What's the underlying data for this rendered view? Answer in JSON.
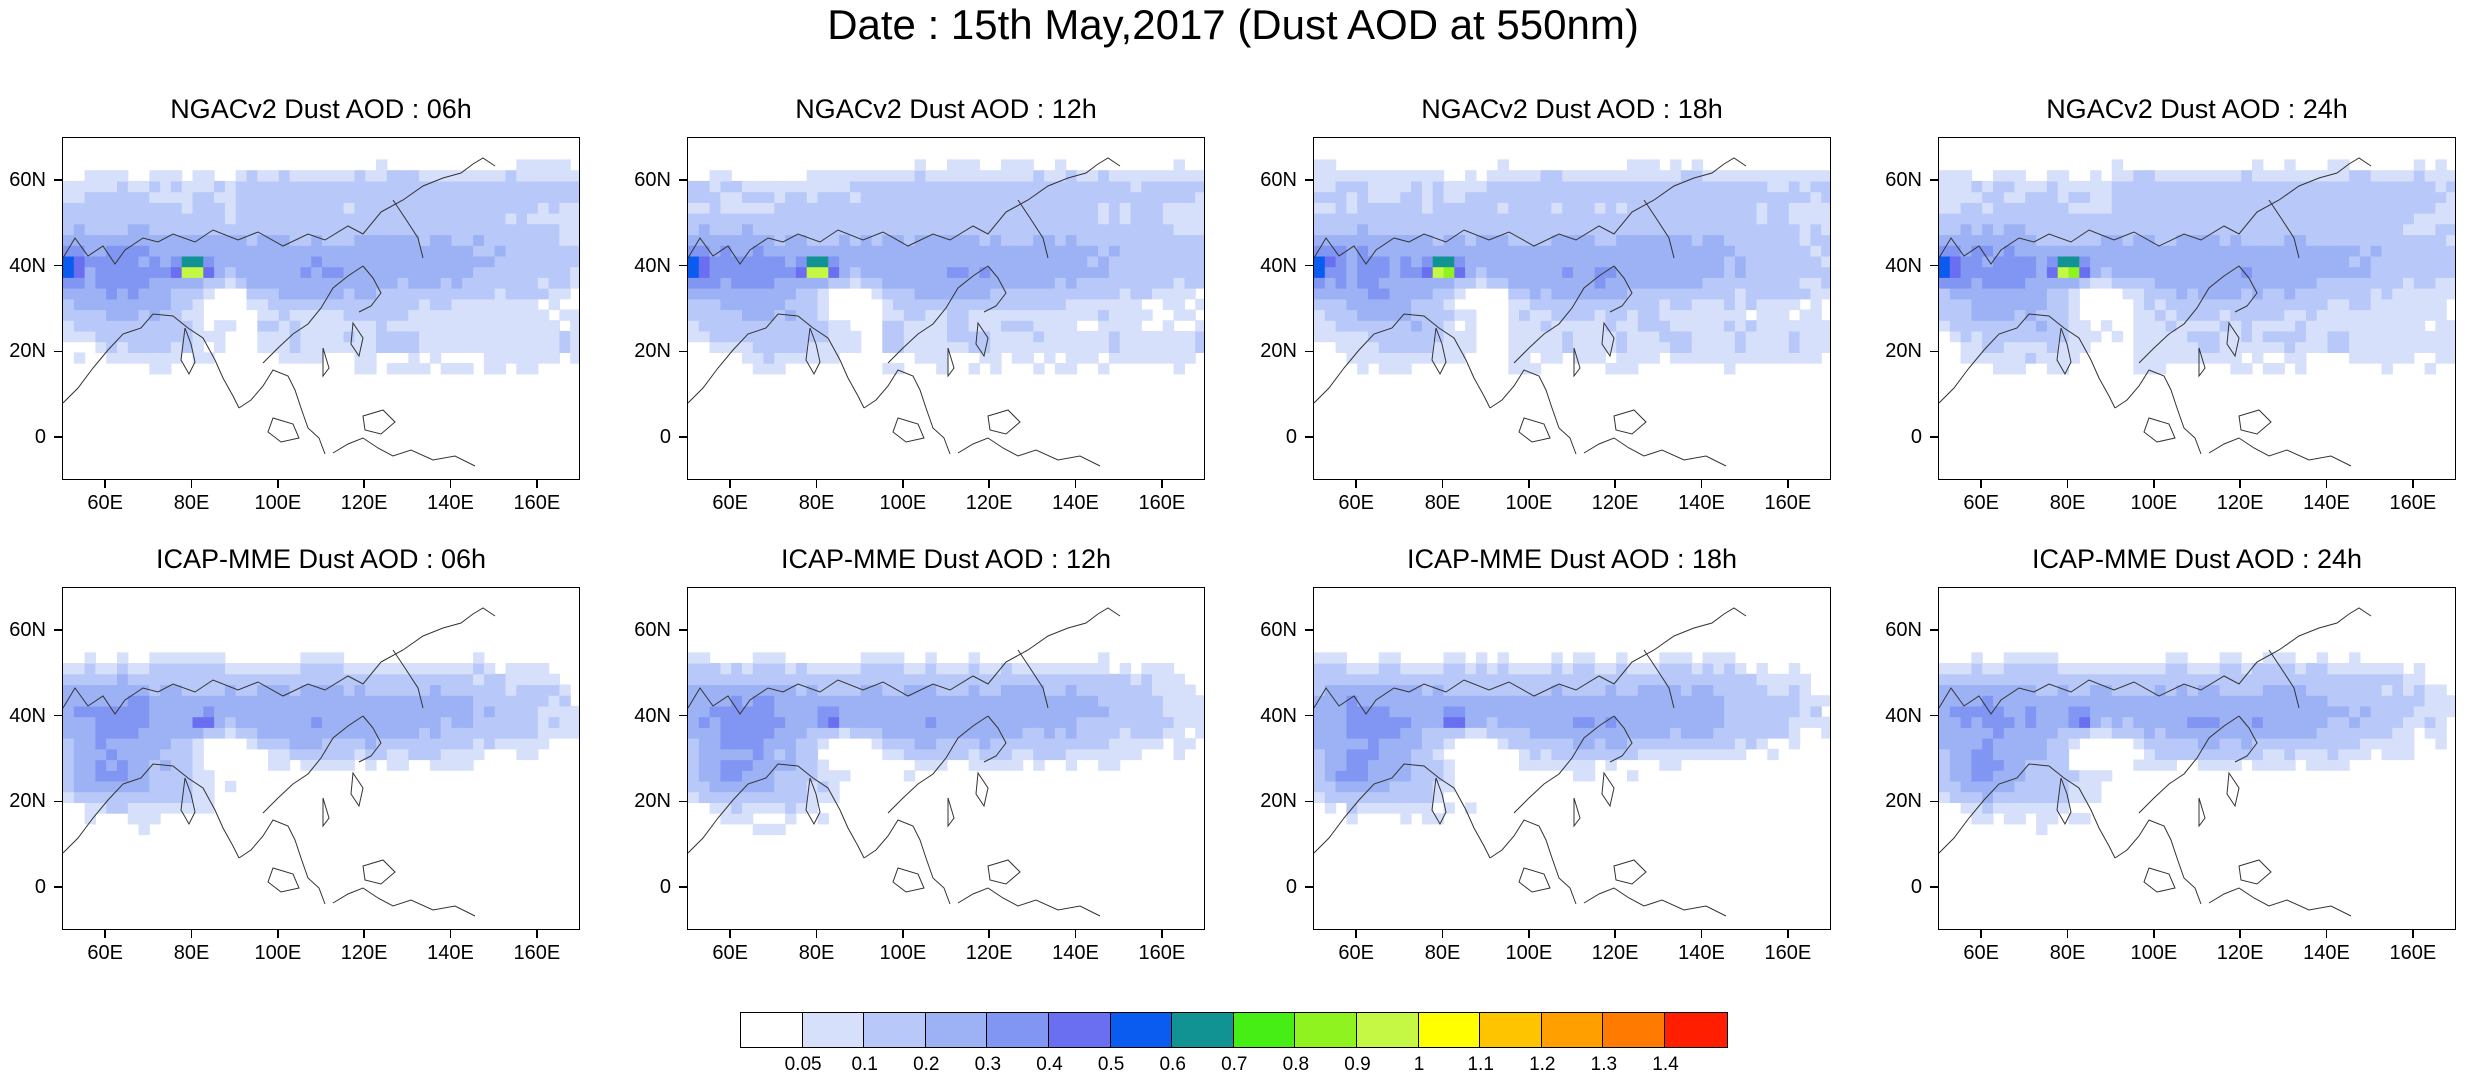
{
  "title": "Date : 15th May,2017 (Dust AOD at 550nm)",
  "panels": [
    {
      "title": "NGACv2 Dust AOD : 06h",
      "model": "NGACv2",
      "hour": "06h"
    },
    {
      "title": "NGACv2 Dust AOD : 12h",
      "model": "NGACv2",
      "hour": "12h"
    },
    {
      "title": "NGACv2 Dust AOD : 18h",
      "model": "NGACv2",
      "hour": "18h"
    },
    {
      "title": "NGACv2 Dust AOD : 24h",
      "model": "NGACv2",
      "hour": "24h"
    },
    {
      "title": "ICAP-MME Dust AOD : 06h",
      "model": "ICAP-MME",
      "hour": "06h"
    },
    {
      "title": "ICAP-MME Dust AOD : 12h",
      "model": "ICAP-MME",
      "hour": "12h"
    },
    {
      "title": "ICAP-MME Dust AOD : 18h",
      "model": "ICAP-MME",
      "hour": "18h"
    },
    {
      "title": "ICAP-MME Dust AOD : 24h",
      "model": "ICAP-MME",
      "hour": "24h"
    }
  ],
  "lat_labels": [
    "60N",
    "40N",
    "20N",
    "0"
  ],
  "lon_labels": [
    "60E",
    "80E",
    "100E",
    "120E",
    "140E",
    "160E"
  ],
  "colorbar": {
    "labels": [
      "0.05",
      "0.1",
      "0.2",
      "0.3",
      "0.4",
      "0.5",
      "0.6",
      "0.7",
      "0.8",
      "0.9",
      "1",
      "1.1",
      "1.2",
      "1.3",
      "1.4"
    ],
    "colors": [
      "#ffffff",
      "#d6e0fb",
      "#b8c8f8",
      "#9cb2f4",
      "#8196f2",
      "#6a6ef0",
      "#0a5cf0",
      "#119393",
      "#47ee16",
      "#8ff31f",
      "#c4f844",
      "#ffff00",
      "#ffc400",
      "#ffa000",
      "#ff7a00",
      "#ff1e00"
    ]
  }
}
